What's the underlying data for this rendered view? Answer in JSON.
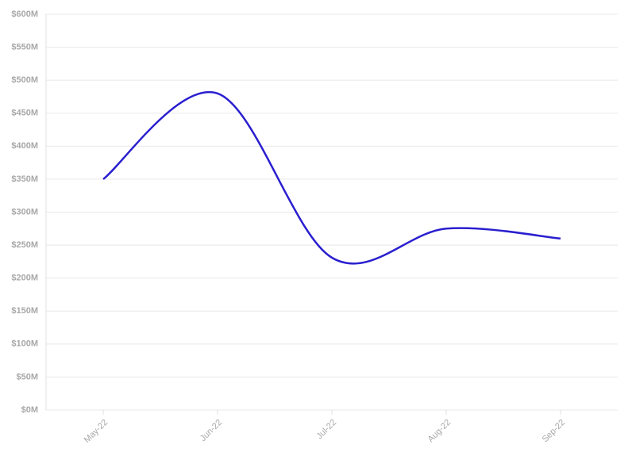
{
  "chart_data": {
    "type": "line",
    "categories": [
      "May-22",
      "Jun-22",
      "Jul-22",
      "Aug-22",
      "Sep-22"
    ],
    "series": [
      {
        "color": "#2a1fcf",
        "values": [
          350000000,
          480000000,
          231000000,
          275000000,
          260000000
        ]
      }
    ],
    "ylim": [
      0,
      600000000
    ],
    "yticks": [
      {
        "value": 0,
        "label": "$0M"
      },
      {
        "value": 50000000,
        "label": "$50M"
      },
      {
        "value": 100000000,
        "label": "$100M"
      },
      {
        "value": 150000000,
        "label": "$150M"
      },
      {
        "value": 200000000,
        "label": "$200M"
      },
      {
        "value": 250000000,
        "label": "$250M"
      },
      {
        "value": 300000000,
        "label": "$300M"
      },
      {
        "value": 350000000,
        "label": "$350M"
      },
      {
        "value": 400000000,
        "label": "$400M"
      },
      {
        "value": 450000000,
        "label": "$450M"
      },
      {
        "value": 500000000,
        "label": "$500M"
      },
      {
        "value": 550000000,
        "label": "$550M"
      },
      {
        "value": 600000000,
        "label": "$600M"
      }
    ],
    "grid": true,
    "smooth": true
  }
}
